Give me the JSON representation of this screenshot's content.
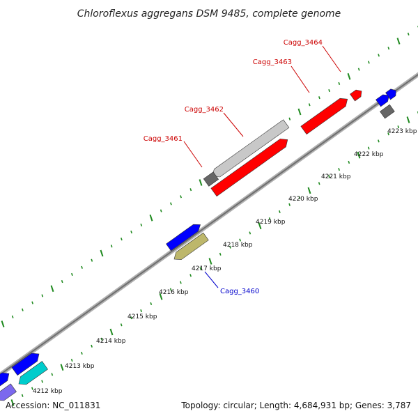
{
  "title": "Chloroflexus aggregans DSM 9485, complete genome",
  "footer": {
    "accession": "Accession: NC_011831",
    "summary": "Topology: circular; Length: 4,684,931 bp; Genes: 3,787"
  },
  "colors": {
    "backbone": "#888888",
    "tick": "#1f8a1f",
    "label_red": "#cc0000",
    "label_blue": "#0000cc",
    "gene_red": "#ff0000",
    "gene_blue": "#0000ff",
    "gene_lightgray": "#c8c8c8",
    "gene_darkgray": "#666666",
    "gene_olive": "#bdb76b",
    "gene_cyan": "#00cccc",
    "gene_purple": "#7b68ee"
  },
  "ticks": [
    {
      "label": "4212 kbp"
    },
    {
      "label": "4213 kbp"
    },
    {
      "label": "4214 kbp"
    },
    {
      "label": "4215 kbp"
    },
    {
      "label": "4216 kbp"
    },
    {
      "label": "4217 kbp"
    },
    {
      "label": "4218 kbp"
    },
    {
      "label": "4219 kbp"
    },
    {
      "label": "4220 kbp"
    },
    {
      "label": "4221 kbp"
    },
    {
      "label": "4222 kbp"
    },
    {
      "label": "4223 kbp"
    }
  ],
  "genes": [
    {
      "name": "Cagg_3460",
      "strand": "reverse",
      "color": "olive"
    },
    {
      "name": "Cagg_3461",
      "strand": "forward",
      "color": "darkgray"
    },
    {
      "name": "Cagg_3462",
      "strand": "forward",
      "color": "lightgray"
    },
    {
      "name": "Cagg_3463",
      "strand": "forward",
      "color": "red"
    },
    {
      "name": "Cagg_3464",
      "strand": "forward",
      "color": "red"
    }
  ]
}
